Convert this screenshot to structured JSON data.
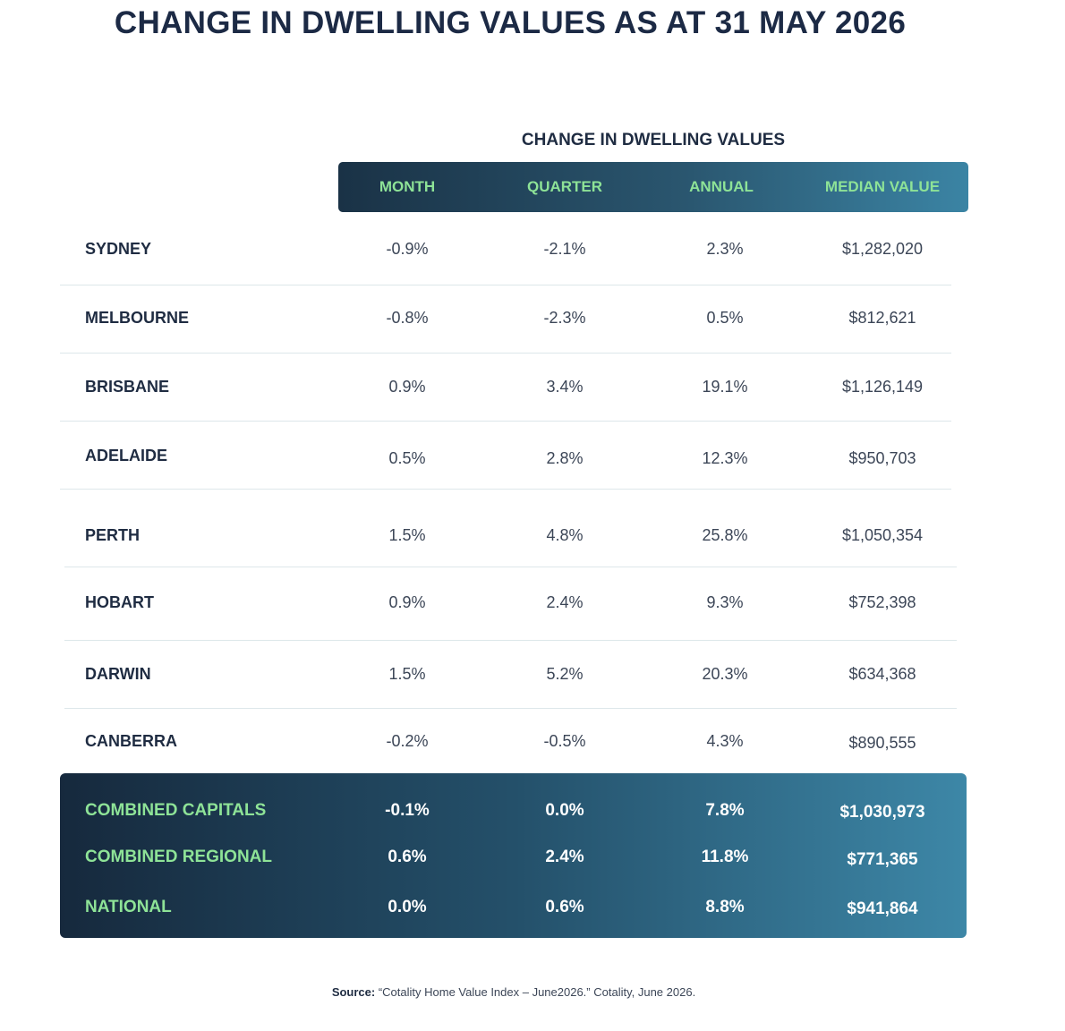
{
  "title": "CHANGE IN DWELLING VALUES AS AT 31 MAY 2026",
  "group_header": "CHANGE IN DWELLING VALUES",
  "columns": [
    "MONTH",
    "QUARTER",
    "ANNUAL",
    "MEDIAN VALUE"
  ],
  "rows": [
    {
      "label": "SYDNEY",
      "values": [
        "-0.9%",
        "-2.1%",
        "2.3%",
        "$1,282,020"
      ]
    },
    {
      "label": "MELBOURNE",
      "values": [
        "-0.8%",
        "-2.3%",
        "0.5%",
        "$812,621"
      ]
    },
    {
      "label": "BRISBANE",
      "values": [
        "0.9%",
        "3.4%",
        "19.1%",
        "$1,126,149"
      ]
    },
    {
      "label": "ADELAIDE",
      "values": [
        "0.5%",
        "2.8%",
        "12.3%",
        "$950,703"
      ]
    },
    {
      "label": "PERTH",
      "values": [
        "1.5%",
        "4.8%",
        "25.8%",
        "$1,050,354"
      ]
    },
    {
      "label": "HOBART",
      "values": [
        "0.9%",
        "2.4%",
        "9.3%",
        "$752,398"
      ]
    },
    {
      "label": "DARWIN",
      "values": [
        "1.5%",
        "5.2%",
        "20.3%",
        "$634,368"
      ]
    },
    {
      "label": "CANBERRA",
      "values": [
        "-0.2%",
        "-0.5%",
        "4.3%",
        "$890,555"
      ]
    }
  ],
  "summary_rows": [
    {
      "label": "COMBINED CAPITALS",
      "values": [
        "-0.1%",
        "0.0%",
        "7.8%",
        "$1,030,973"
      ]
    },
    {
      "label": "COMBINED REGIONAL",
      "values": [
        "0.6%",
        "2.4%",
        "11.8%",
        "$771,365"
      ]
    },
    {
      "label": "NATIONAL",
      "values": [
        "0.0%",
        "0.6%",
        "8.8%",
        "$941,864"
      ]
    }
  ],
  "source": {
    "label": "Source:",
    "text": "“Cotality Home Value Index – June2026.” Cotality, June 2026."
  },
  "colors": {
    "title": "#1c2a45",
    "header_gradient_start": "#1a3246",
    "header_gradient_end": "#3b84a4",
    "accent_green": "#8ee397",
    "divider": "#dde7ea"
  },
  "chart_data": {
    "type": "table",
    "title": "CHANGE IN DWELLING VALUES AS AT 31 MAY 2026",
    "columns": [
      "MONTH",
      "QUARTER",
      "ANNUAL",
      "MEDIAN VALUE"
    ],
    "rows": [
      {
        "label": "SYDNEY",
        "month": -0.9,
        "quarter": -2.1,
        "annual": 2.3,
        "median_value": 1282020
      },
      {
        "label": "MELBOURNE",
        "month": -0.8,
        "quarter": -2.3,
        "annual": 0.5,
        "median_value": 812621
      },
      {
        "label": "BRISBANE",
        "month": 0.9,
        "quarter": 3.4,
        "annual": 19.1,
        "median_value": 1126149
      },
      {
        "label": "ADELAIDE",
        "month": 0.5,
        "quarter": 2.8,
        "annual": 12.3,
        "median_value": 950703
      },
      {
        "label": "PERTH",
        "month": 1.5,
        "quarter": 4.8,
        "annual": 25.8,
        "median_value": 1050354
      },
      {
        "label": "HOBART",
        "month": 0.9,
        "quarter": 2.4,
        "annual": 9.3,
        "median_value": 752398
      },
      {
        "label": "DARWIN",
        "month": 1.5,
        "quarter": 5.2,
        "annual": 20.3,
        "median_value": 634368
      },
      {
        "label": "CANBERRA",
        "month": -0.2,
        "quarter": -0.5,
        "annual": 4.3,
        "median_value": 890555
      },
      {
        "label": "COMBINED CAPITALS",
        "month": -0.1,
        "quarter": 0.0,
        "annual": 7.8,
        "median_value": 1030973
      },
      {
        "label": "COMBINED REGIONAL",
        "month": 0.6,
        "quarter": 2.4,
        "annual": 11.8,
        "median_value": 771365
      },
      {
        "label": "NATIONAL",
        "month": 0.0,
        "quarter": 0.6,
        "annual": 8.8,
        "median_value": 941864
      }
    ]
  }
}
